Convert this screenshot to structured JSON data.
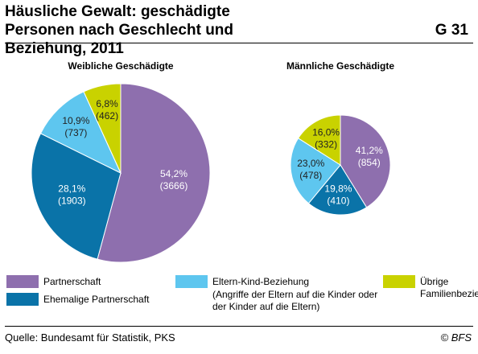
{
  "header": {
    "title": "Häusliche Gewalt: geschädigte Personen nach Geschlecht und Beziehung, 2011",
    "code": "G 31"
  },
  "chart_data": [
    {
      "type": "pie",
      "title": "Weibliche Geschädigte",
      "categories": [
        "Partnerschaft",
        "Ehemalige Partnerschaft",
        "Eltern-Kind-Beziehung",
        "Übrige Familienbeziehung"
      ],
      "values": [
        54.2,
        28.1,
        10.9,
        6.8
      ],
      "value_labels": [
        "54,2%",
        "28,1%",
        "10,9%",
        "6,8%"
      ],
      "counts": [
        3666,
        1903,
        737,
        462
      ],
      "count_labels": [
        "(3666)",
        "(1903)",
        "(737)",
        "(462)"
      ],
      "colors": [
        "#8e6fae",
        "#0a73a8",
        "#5ec6ef",
        "#c9d200"
      ]
    },
    {
      "type": "pie",
      "title": "Männliche Geschädigte",
      "categories": [
        "Partnerschaft",
        "Ehemalige Partnerschaft",
        "Eltern-Kind-Beziehung",
        "Übrige Familienbeziehung"
      ],
      "values": [
        41.2,
        19.8,
        23.0,
        16.0
      ],
      "value_labels": [
        "41,2%",
        "19,8%",
        "23,0%",
        "16,0%"
      ],
      "counts": [
        854,
        410,
        478,
        332
      ],
      "count_labels": [
        "(854)",
        "(410)",
        "(478)",
        "(332)"
      ],
      "colors": [
        "#8e6fae",
        "#0a73a8",
        "#5ec6ef",
        "#c9d200"
      ]
    }
  ],
  "legend_note": "(Angriffe der Eltern auf die Kinder oder der Kinder auf die Eltern)",
  "source": "Quelle: Bundesamt für Statistik, PKS",
  "copyright": "© BFS"
}
